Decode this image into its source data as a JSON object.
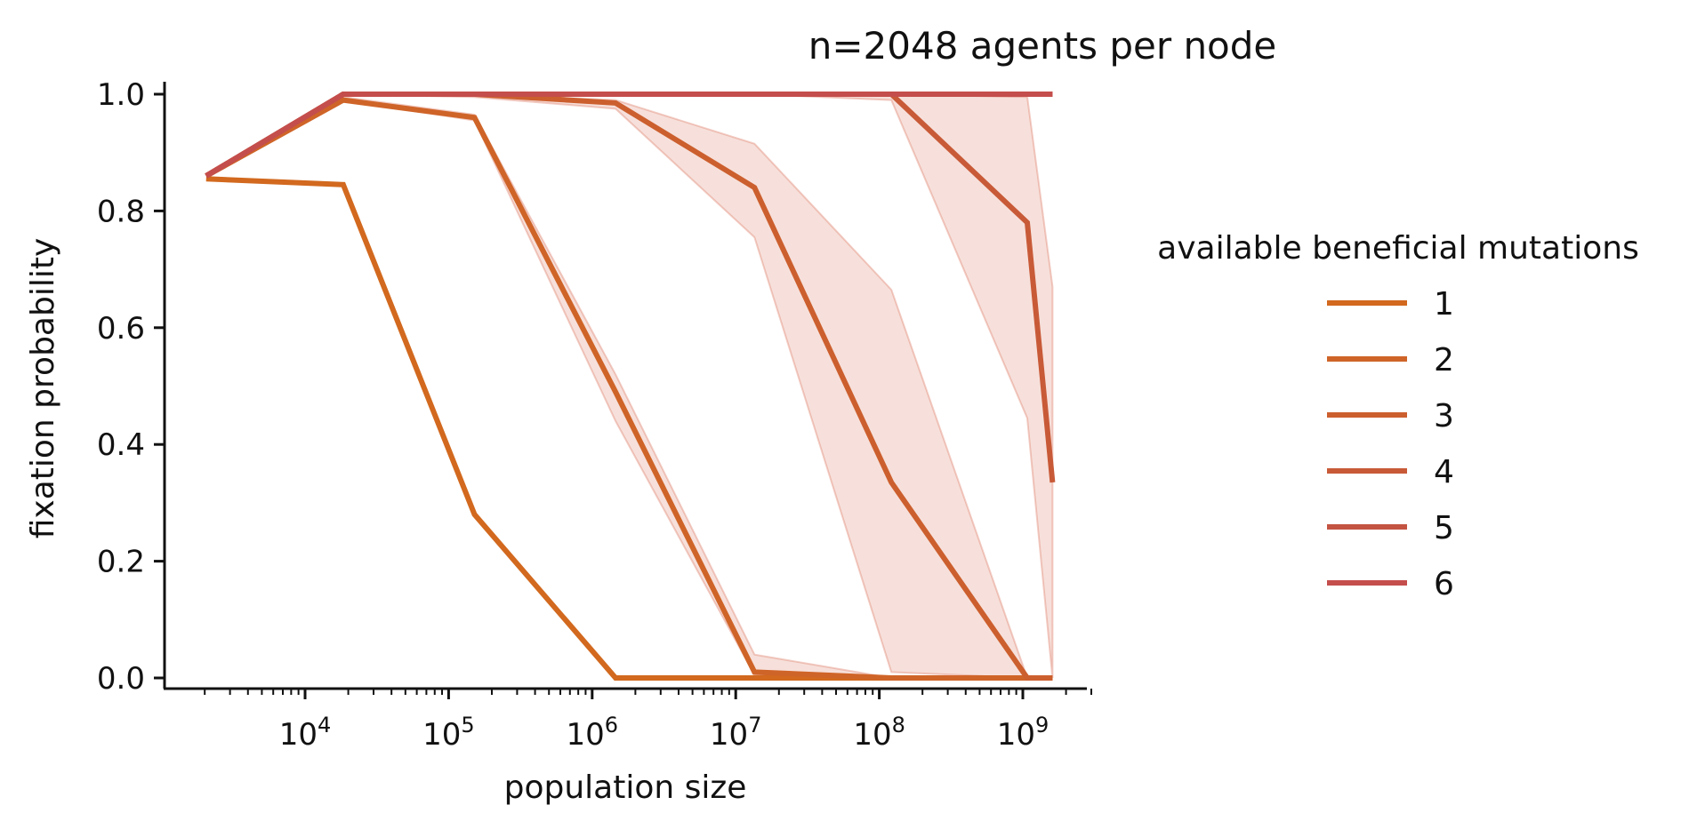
{
  "chart_data": {
    "type": "line",
    "title": "n=2048 agents per node",
    "xlabel": "population size",
    "ylabel": "fixation probability",
    "xscale": "log",
    "xlim": [
      1600,
      3000000000
    ],
    "ylim": [
      -0.02,
      1.02
    ],
    "x_ticks": [
      {
        "value": 10000,
        "base": "10",
        "exp": "4"
      },
      {
        "value": 100000,
        "base": "10",
        "exp": "5"
      },
      {
        "value": 1000000,
        "base": "10",
        "exp": "6"
      },
      {
        "value": 10000000,
        "base": "10",
        "exp": "7"
      },
      {
        "value": 100000000,
        "base": "10",
        "exp": "8"
      },
      {
        "value": 1000000000,
        "base": "10",
        "exp": "9"
      }
    ],
    "y_ticks": [
      {
        "value": 0.0,
        "label": "0.0"
      },
      {
        "value": 0.2,
        "label": "0.2"
      },
      {
        "value": 0.4,
        "label": "0.4"
      },
      {
        "value": 0.6,
        "label": "0.6"
      },
      {
        "value": 0.8,
        "label": "0.8"
      },
      {
        "value": 1.0,
        "label": "1.0"
      }
    ],
    "grid": false,
    "legend": {
      "title": "available beneficial mutations",
      "placement": "right"
    },
    "series": [
      {
        "name": "1",
        "color": "#d2691e",
        "x": [
          2048,
          18432,
          151552,
          1456128,
          13516800,
          121438208,
          1073741824,
          1610612736
        ],
        "y": [
          0.855,
          0.845,
          0.28,
          0.0,
          0.0,
          0.0,
          0.0,
          0.0
        ]
      },
      {
        "name": "2",
        "color": "#cf6428",
        "x": [
          2048,
          18432,
          151552,
          1456128,
          13516800,
          121438208,
          1073741824,
          1610612736
        ],
        "y": [
          0.86,
          0.99,
          0.96,
          0.49,
          0.01,
          0.0,
          0.0,
          0.0
        ],
        "band_low": [
          0.86,
          0.99,
          0.955,
          0.44,
          0.005,
          0.0,
          0.0,
          0.0
        ],
        "band_high": [
          0.86,
          0.995,
          0.965,
          0.52,
          0.04,
          0.0,
          0.0,
          0.0
        ]
      },
      {
        "name": "3",
        "color": "#cc5f2e",
        "x": [
          2048,
          18432,
          151552,
          1456128,
          13516800,
          121438208,
          1073741824,
          1610612736
        ],
        "y": [
          0.86,
          1.0,
          1.0,
          0.985,
          0.84,
          0.335,
          0.0,
          0.0
        ],
        "band_low": [
          0.86,
          1.0,
          0.995,
          0.975,
          0.755,
          0.01,
          0.0,
          0.0
        ],
        "band_high": [
          0.86,
          1.0,
          1.0,
          0.99,
          0.915,
          0.665,
          0.0,
          0.0
        ]
      },
      {
        "name": "4",
        "color": "#c85a38",
        "x": [
          2048,
          18432,
          151552,
          1456128,
          13516800,
          121438208,
          1073741824,
          1610612736
        ],
        "y": [
          0.86,
          1.0,
          1.0,
          1.0,
          1.0,
          1.0,
          0.78,
          0.335
        ],
        "band_low": [
          0.86,
          1.0,
          1.0,
          1.0,
          1.0,
          0.99,
          0.445,
          0.0
        ],
        "band_high": [
          0.86,
          1.0,
          1.0,
          1.0,
          1.0,
          1.0,
          0.995,
          0.67
        ]
      },
      {
        "name": "5",
        "color": "#c45442",
        "x": [
          2048,
          18432,
          151552,
          1456128,
          13516800,
          121438208,
          1073741824,
          1610612736
        ],
        "y": [
          0.86,
          1.0,
          1.0,
          1.0,
          1.0,
          1.0,
          1.0,
          1.0
        ]
      },
      {
        "name": "6",
        "color": "#c44e4c",
        "x": [
          2048,
          18432,
          151552,
          1456128,
          13516800,
          121438208,
          1073741824,
          1610612736
        ],
        "y": [
          0.86,
          1.0,
          1.0,
          1.0,
          1.0,
          1.0,
          1.0,
          1.0
        ]
      }
    ],
    "band_color": "#d9705a"
  }
}
